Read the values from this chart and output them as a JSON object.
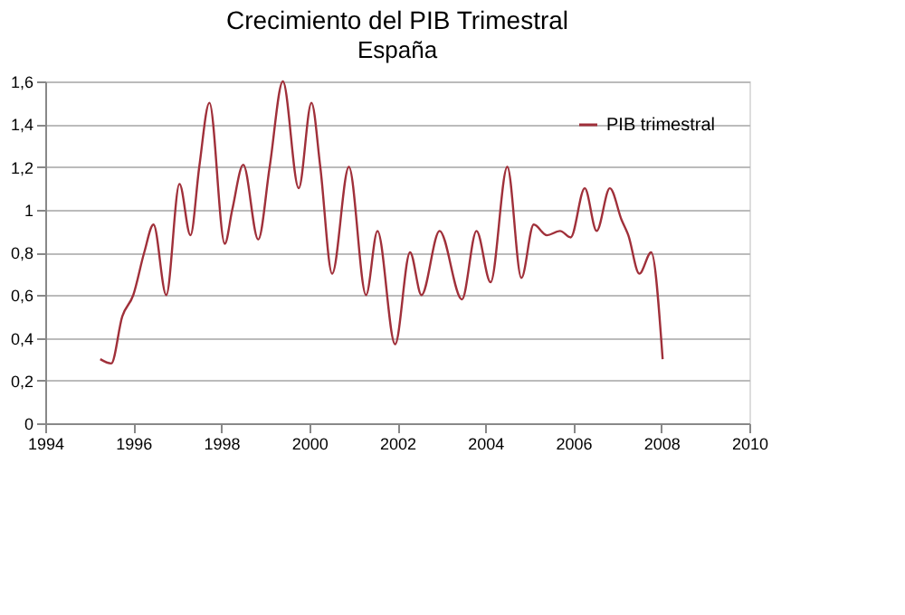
{
  "chart_data": {
    "type": "line",
    "title": "Crecimiento del PIB Trimestral",
    "subtitle": "España",
    "x": [
      1995.25,
      1995.5,
      1995.75,
      1996.0,
      1996.25,
      1996.46,
      1996.75,
      1997.05,
      1997.3,
      1997.5,
      1997.73,
      1998.08,
      1998.25,
      1998.5,
      1998.84,
      1999.1,
      1999.4,
      1999.76,
      2000.05,
      2000.25,
      2000.52,
      2000.9,
      2001.29,
      2001.55,
      2001.95,
      2002.29,
      2002.55,
      2002.96,
      2003.47,
      2003.8,
      2004.12,
      2004.5,
      2004.82,
      2005.1,
      2005.4,
      2005.7,
      2005.94,
      2006.26,
      2006.53,
      2006.83,
      2007.1,
      2007.25,
      2007.5,
      2007.77,
      2008.03
    ],
    "series": [
      {
        "name": "PIB trimestral",
        "color": "#a0303a",
        "values": [
          0.3,
          0.28,
          0.5,
          0.6,
          0.8,
          0.93,
          0.6,
          1.12,
          0.88,
          1.2,
          1.5,
          0.84,
          1.0,
          1.21,
          0.86,
          1.2,
          1.6,
          1.1,
          1.5,
          1.2,
          0.7,
          1.2,
          0.6,
          0.9,
          0.37,
          0.8,
          0.6,
          0.9,
          0.58,
          0.9,
          0.66,
          1.2,
          0.68,
          0.93,
          0.88,
          0.9,
          0.87,
          1.1,
          0.9,
          1.1,
          0.95,
          0.88,
          0.7,
          0.8,
          0.3
        ]
      }
    ],
    "xlim": [
      1994,
      2010
    ],
    "xticks": [
      1994,
      1996,
      1998,
      2000,
      2002,
      2004,
      2006,
      2008,
      2010
    ],
    "ylim": [
      0,
      1.6
    ],
    "yticks": [
      0,
      {
        "value": 0.2,
        "label": "0,2"
      },
      {
        "value": 0.4,
        "label": "0,4"
      },
      {
        "value": 0.6,
        "label": "0,6"
      },
      {
        "value": 0.8,
        "label": "0,8"
      },
      1,
      {
        "value": 1.2,
        "label": "1,2"
      },
      {
        "value": 1.4,
        "label": "1,4"
      },
      {
        "value": 1.6,
        "label": "1,6"
      }
    ],
    "grid": "y",
    "legend": "top right",
    "marker": "none",
    "line_style": "solid"
  }
}
